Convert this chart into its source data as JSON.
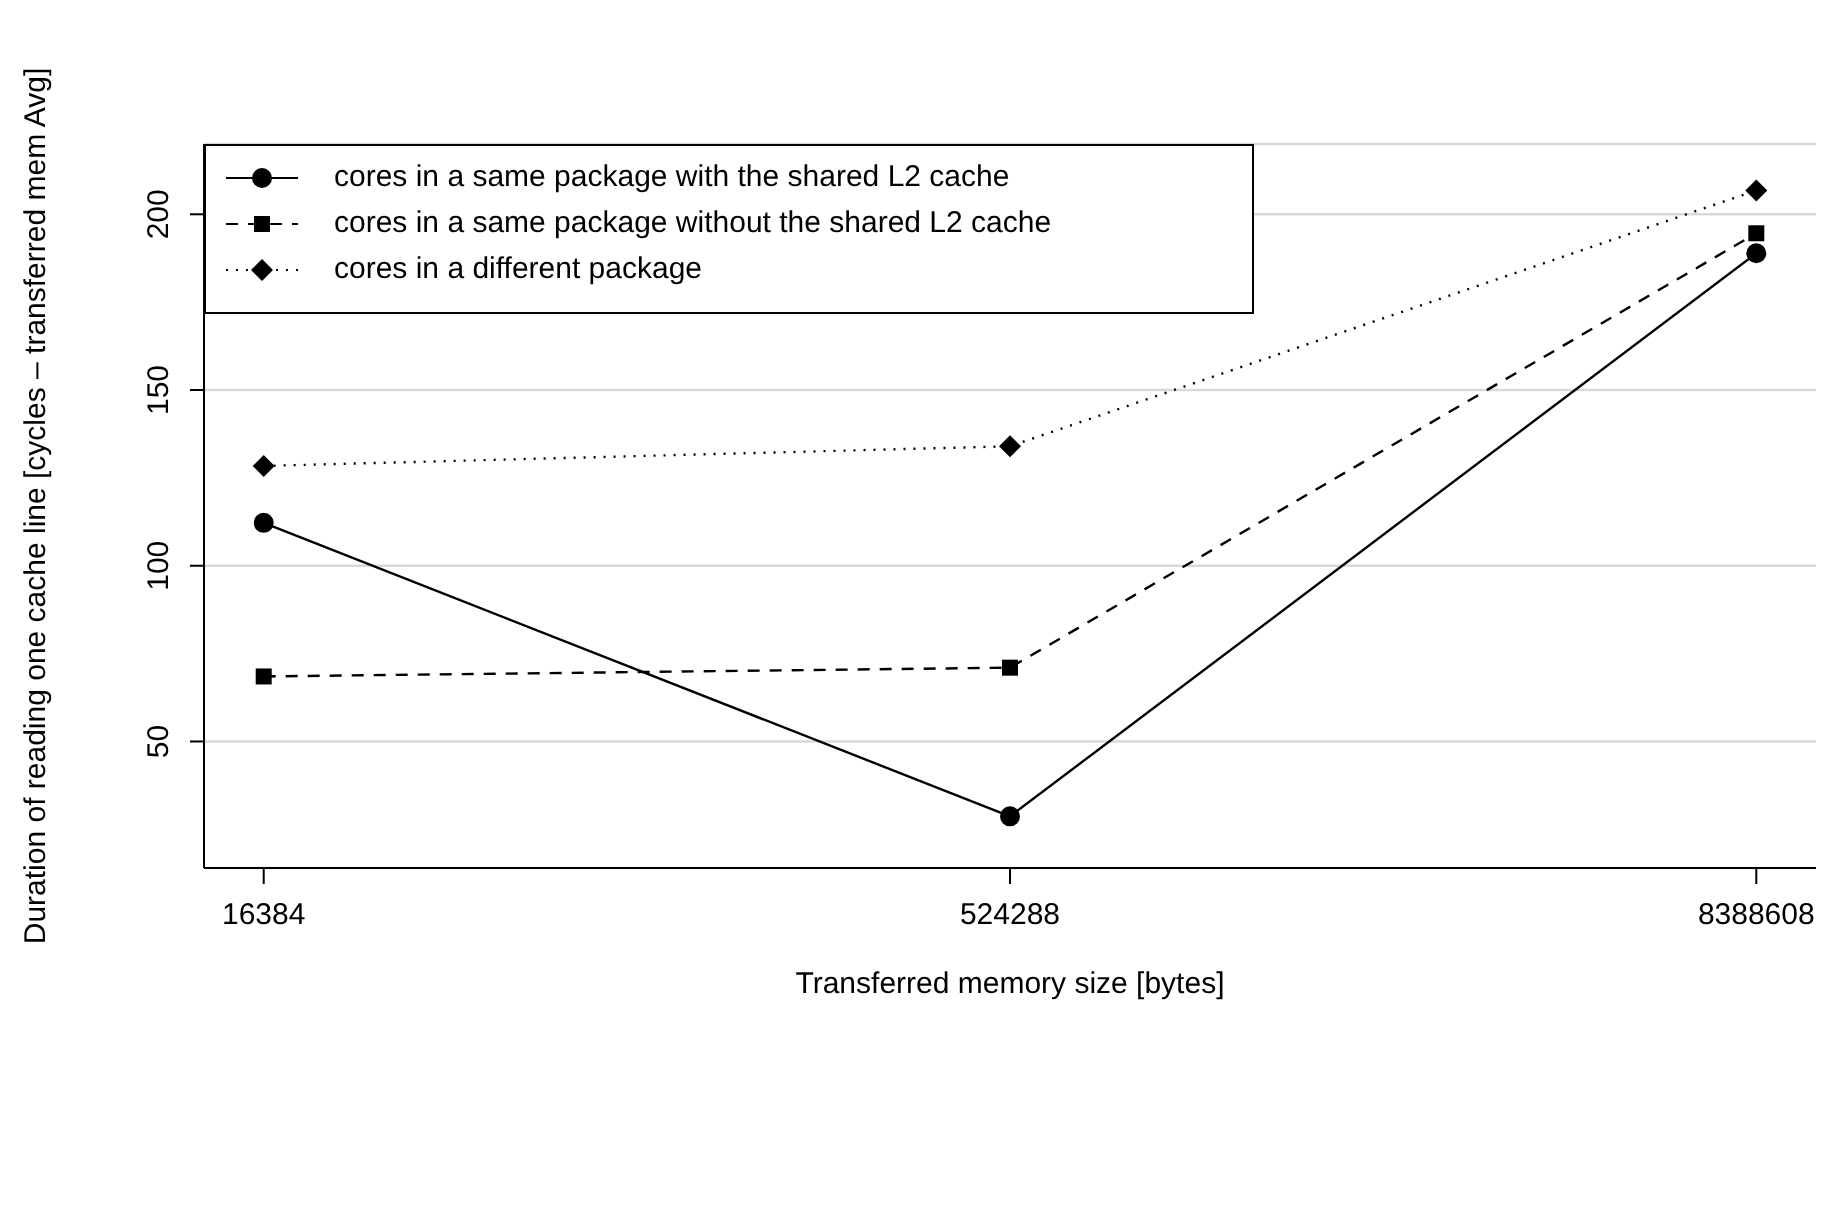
{
  "chart_data": {
    "type": "line",
    "categories": [
      "16384",
      "524288",
      "8388608"
    ],
    "xlabel": "Transferred memory size [bytes]",
    "ylabel": "Duration of reading one cache line [cycles – transferred mem Avg]",
    "ylim": [
      14,
      220
    ],
    "yticks": [
      50,
      100,
      150,
      200
    ],
    "grid": "y",
    "legend": "top left",
    "series": [
      {
        "name": "cores in a same package with the shared L2 cache",
        "color": "#000000",
        "marker": "circle",
        "line_style": "solid",
        "values": [
          112.2,
          28.7,
          188.9
        ]
      },
      {
        "name": "cores in a same package without the shared L2 cache",
        "color": "#000000",
        "marker": "square",
        "line_style": "dashed",
        "values": [
          68.5,
          71.0,
          194.6
        ]
      },
      {
        "name": "cores in a different package",
        "color": "#000000",
        "marker": "diamond",
        "line_style": "dotted",
        "values": [
          128.4,
          134.0,
          206.8
        ]
      }
    ]
  }
}
